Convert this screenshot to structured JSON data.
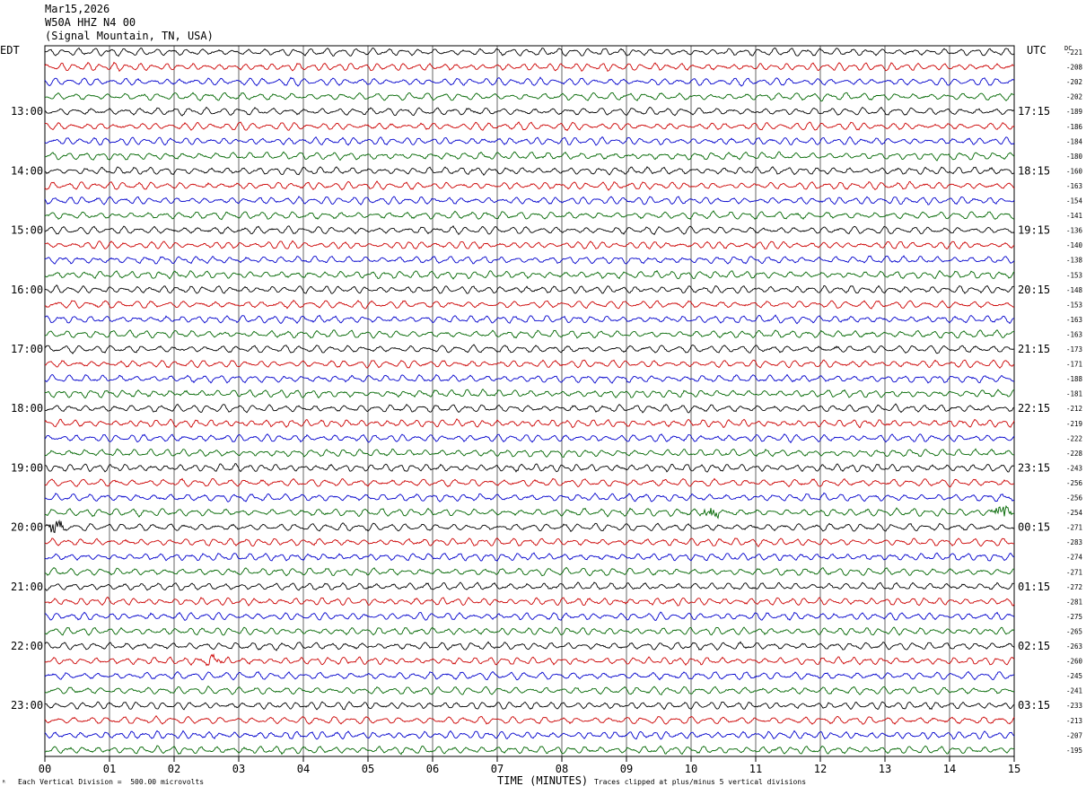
{
  "header": {
    "date": "Mar15,2026",
    "station": "W50A HHZ N4 00",
    "location": "(Signal Mountain, TN, USA)"
  },
  "left_axis_title": "EDT",
  "right_axis_title": "UTC",
  "dc_title": "DC",
  "footer": {
    "scale_note": "Each Vertical Division =  500.00 microvolts",
    "xlabel": "TIME (MINUTES)",
    "clip_note": "Traces clipped at plus/minus 5 vertical divisions"
  },
  "colors": {
    "trace_cycle": [
      "#000000",
      "#cc0000",
      "#0000cc",
      "#006600"
    ],
    "grid": "#000000"
  },
  "chart_data": {
    "type": "line",
    "title": "W50A HHZ N4 00",
    "xlabel": "TIME (MINUTES)",
    "xlim": [
      0,
      15
    ],
    "x_ticks": [
      "00",
      "01",
      "02",
      "03",
      "04",
      "05",
      "06",
      "07",
      "08",
      "09",
      "10",
      "11",
      "12",
      "13",
      "14",
      "15"
    ],
    "trace_count": 48,
    "traces_per_hour": 4,
    "left_hour_labels": [
      {
        "trace": 4,
        "label": "13:00"
      },
      {
        "trace": 8,
        "label": "14:00"
      },
      {
        "trace": 12,
        "label": "15:00"
      },
      {
        "trace": 16,
        "label": "16:00"
      },
      {
        "trace": 20,
        "label": "17:00"
      },
      {
        "trace": 24,
        "label": "18:00"
      },
      {
        "trace": 28,
        "label": "19:00"
      },
      {
        "trace": 32,
        "label": "20:00"
      },
      {
        "trace": 36,
        "label": "21:00"
      },
      {
        "trace": 40,
        "label": "22:00"
      },
      {
        "trace": 44,
        "label": "23:00"
      }
    ],
    "right_hour_labels": [
      {
        "trace": 4,
        "label": "17:15"
      },
      {
        "trace": 8,
        "label": "18:15"
      },
      {
        "trace": 12,
        "label": "19:15"
      },
      {
        "trace": 16,
        "label": "20:15"
      },
      {
        "trace": 20,
        "label": "21:15"
      },
      {
        "trace": 24,
        "label": "22:15"
      },
      {
        "trace": 28,
        "label": "23:15"
      },
      {
        "trace": 32,
        "label": "00:15"
      },
      {
        "trace": 36,
        "label": "01:15"
      },
      {
        "trace": 40,
        "label": "02:15"
      },
      {
        "trace": 44,
        "label": "03:15"
      }
    ],
    "dc_offsets": [
      "-221",
      "-208",
      "-202",
      "-202",
      "-189",
      "-186",
      "-184",
      "-180",
      "-160",
      "-163",
      "-154",
      "-141",
      "-136",
      "-140",
      "-138",
      "-153",
      "-148",
      "-153",
      "-163",
      "-163",
      "-173",
      "-171",
      "-188",
      "-181",
      "-212",
      "-219",
      "-222",
      "-228",
      "-243",
      "-256",
      "-256",
      "-254",
      "-271",
      "-283",
      "-274",
      "-271",
      "-272",
      "-281",
      "-275",
      "-265",
      "-263",
      "-260",
      "-245",
      "-241",
      "-233",
      "-213",
      "-207",
      "-195"
    ],
    "events": [
      {
        "trace": 31,
        "minute": 10.3,
        "amplitude": 6
      },
      {
        "trace": 31,
        "minute": 14.8,
        "amplitude": 9
      },
      {
        "trace": 32,
        "minute": 0.15,
        "amplitude": 8
      },
      {
        "trace": 41,
        "minute": 2.6,
        "amplitude": 5
      }
    ]
  }
}
